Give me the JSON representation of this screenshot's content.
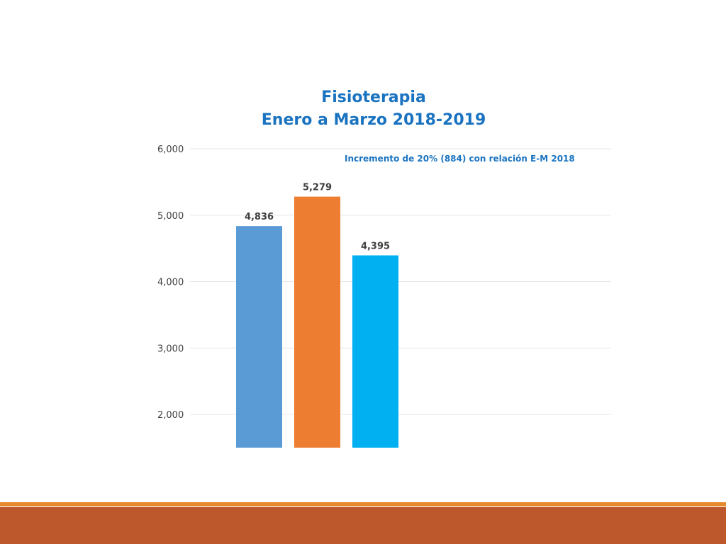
{
  "chart_data": {
    "type": "bar",
    "title": "Fisioterapia",
    "subtitle": "Enero a Marzo 2018-2019",
    "annotation": "Incremento de 20% (884) con relación E-M 2018",
    "ylim": [
      1500,
      6000
    ],
    "y_ticks": [
      2000,
      3000,
      4000,
      5000,
      6000
    ],
    "y_tick_labels": [
      "2,000",
      "3,000",
      "4,000",
      "5,000",
      "6,000"
    ],
    "grid": true,
    "bars": [
      {
        "value": 4836,
        "label": "4,836",
        "color": "#5b9bd5"
      },
      {
        "value": 5279,
        "label": "5,279",
        "color": "#ed7d31"
      },
      {
        "value": 4395,
        "label": "4,395",
        "color": "#00b0f0"
      }
    ]
  },
  "theme": {
    "title_color": "#1a73c0",
    "footer_line_color": "#e68a2e",
    "footer_band_color": "#bd582c"
  }
}
